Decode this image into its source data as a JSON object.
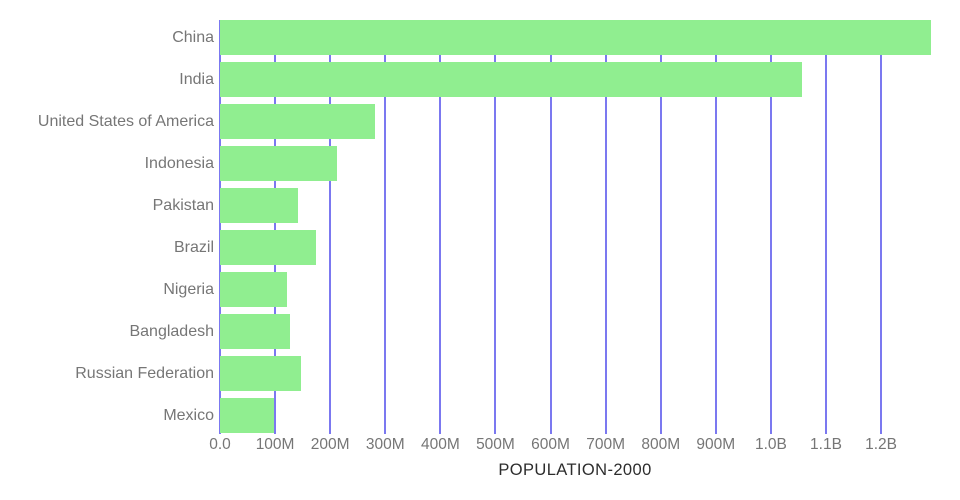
{
  "chart_data": {
    "type": "bar",
    "orientation": "horizontal",
    "title": "POPULATION-2000",
    "categories": [
      "China",
      "India",
      "United States of America",
      "Indonesia",
      "Pakistan",
      "Brazil",
      "Nigeria",
      "Bangladesh",
      "Russian Federation",
      "Mexico"
    ],
    "values_millions": [
      1290.6,
      1056.6,
      281.7,
      211.5,
      142.3,
      174.8,
      122.3,
      127.7,
      146.6,
      98.9
    ],
    "xlabel": "",
    "ylabel": "",
    "xlim_millions": [
      0,
      1290.6
    ],
    "x_ticks": [
      {
        "label": "0.0",
        "value_millions": 0
      },
      {
        "label": "100M",
        "value_millions": 100
      },
      {
        "label": "200M",
        "value_millions": 200
      },
      {
        "label": "300M",
        "value_millions": 300
      },
      {
        "label": "400M",
        "value_millions": 400
      },
      {
        "label": "500M",
        "value_millions": 500
      },
      {
        "label": "600M",
        "value_millions": 600
      },
      {
        "label": "700M",
        "value_millions": 700
      },
      {
        "label": "800M",
        "value_millions": 800
      },
      {
        "label": "900M",
        "value_millions": 900
      },
      {
        "label": "1.0B",
        "value_millions": 1000
      },
      {
        "label": "1.1B",
        "value_millions": 1100
      },
      {
        "label": "1.2B",
        "value_millions": 1200
      }
    ],
    "grid": "vertical-gridlines-on",
    "legend": "none",
    "colors": {
      "bar": "#90EE90",
      "gridline": "#7B78F0",
      "axis_text": "#767676",
      "title_text": "#2D2D2D",
      "background": "#FFFFFF"
    }
  }
}
